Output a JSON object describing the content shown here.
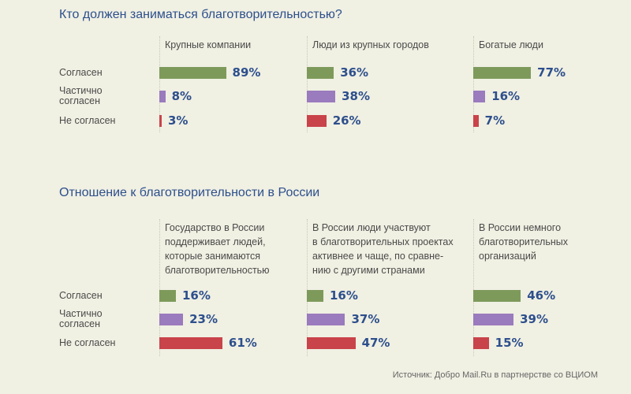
{
  "colors": {
    "agree": "#7e9a5b",
    "partial": "#9a7bbd",
    "disagree": "#c9434a",
    "title": "#2d4f8c"
  },
  "chart_data": [
    {
      "type": "bar",
      "title": "Кто должен заниматься благотворительностью?",
      "row_labels": [
        "Согласен",
        "Частично\nсогласен",
        "Не согласен"
      ],
      "categories": [
        "Крупные компании",
        "Люди из крупных городов",
        "Богатые люди"
      ],
      "series": [
        {
          "name": "Согласен",
          "values": [
            89,
            36,
            77
          ]
        },
        {
          "name": "Частично согласен",
          "values": [
            8,
            38,
            16
          ]
        },
        {
          "name": "Не согласен",
          "values": [
            3,
            26,
            7
          ]
        }
      ],
      "unit": "%"
    },
    {
      "type": "bar",
      "title": "Отношение к благотворительности в России",
      "row_labels": [
        "Согласен",
        "Частично\nсогласен",
        "Не согласен"
      ],
      "categories": [
        "Государство в России\nподдерживает людей,\nкоторые занимаются\nблаготворительностью",
        "В России люди участвуют\nв благотворительных проектах\nактивнее и чаще, по сравне-\nнию с другими странами",
        "В России немного\nблаготворительных\nорганизаций"
      ],
      "series": [
        {
          "name": "Согласен",
          "values": [
            16,
            16,
            46
          ]
        },
        {
          "name": "Частично согласен",
          "values": [
            23,
            37,
            39
          ]
        },
        {
          "name": "Не согласен",
          "values": [
            61,
            47,
            15
          ]
        }
      ],
      "unit": "%"
    }
  ],
  "source": "Источник: Добро Mail.Ru в партнерстве со ВЦИОМ"
}
